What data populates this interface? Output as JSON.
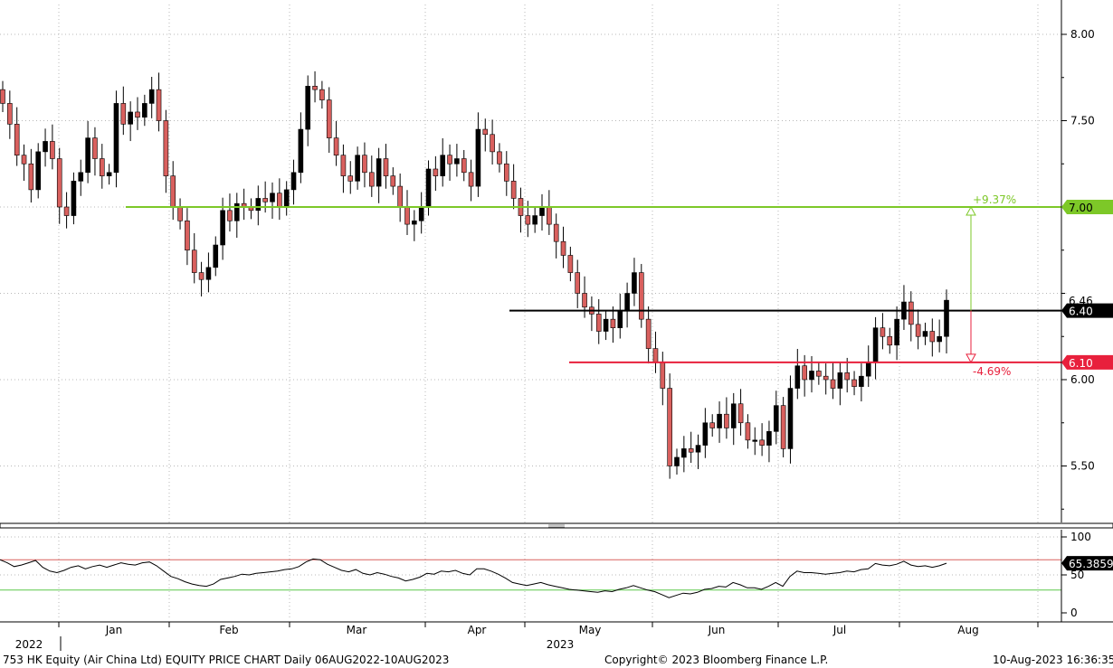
{
  "chart_data": [
    {
      "type": "candlestick",
      "ticker": "753 HK Equity",
      "y_ticks": [
        "8.00",
        "7.50",
        "6.00",
        "5.50"
      ],
      "ylim": [
        5.17,
        8.18
      ],
      "x_month_labels": [
        "Jan",
        "Feb",
        "Mar",
        "Apr",
        "May",
        "Jun",
        "Jul",
        "Aug"
      ],
      "x_year_labels": [
        "2022",
        "2023"
      ],
      "grid": true,
      "colors": {
        "up": "#000000",
        "down": "#d9605e",
        "resistance": "#7dc828",
        "support": "#e8203c",
        "current": "#000000"
      },
      "levels": [
        {
          "name": "resistance",
          "value": 7.0,
          "label": "7.00",
          "pct_label": "+9.37%"
        },
        {
          "name": "current",
          "value": 6.4,
          "label": "6.40"
        },
        {
          "name": "support",
          "value": 6.1,
          "label": "6.10",
          "pct_label": "-4.69%"
        }
      ],
      "partial_tag": "6.46",
      "closes": [
        7.6,
        7.48,
        7.3,
        7.25,
        7.1,
        7.32,
        7.38,
        7.28,
        7.0,
        6.95,
        7.15,
        7.2,
        7.4,
        7.28,
        7.18,
        7.2,
        7.6,
        7.48,
        7.55,
        7.52,
        7.6,
        7.68,
        7.5,
        7.18,
        7.0,
        6.92,
        6.75,
        6.62,
        6.58,
        6.65,
        6.78,
        6.98,
        6.92,
        7.02,
        7.0,
        6.98,
        7.05,
        7.03,
        7.08,
        7.0,
        7.1,
        7.2,
        7.45,
        7.7,
        7.68,
        7.62,
        7.4,
        7.3,
        7.18,
        7.15,
        7.3,
        7.2,
        7.12,
        7.28,
        7.18,
        7.12,
        7.0,
        6.9,
        6.92,
        7.0,
        7.22,
        7.18,
        7.3,
        7.25,
        7.28,
        7.2,
        7.12,
        7.45,
        7.42,
        7.32,
        7.25,
        7.15,
        7.05,
        6.95,
        6.9,
        6.95,
        7.0,
        6.9,
        6.8,
        6.72,
        6.62,
        6.5,
        6.42,
        6.38,
        6.28,
        6.35,
        6.3,
        6.4,
        6.5,
        6.62,
        6.35,
        6.18,
        6.1,
        5.95,
        5.5,
        5.55,
        5.6,
        5.58,
        5.62,
        5.75,
        5.72,
        5.8,
        5.72,
        5.86,
        5.75,
        5.65,
        5.65,
        5.62,
        5.7,
        5.85,
        5.6,
        5.95,
        6.08,
        6.0,
        6.05,
        6.02,
        6.0,
        5.95,
        6.04,
        6.0,
        5.96,
        6.02,
        6.1,
        6.3,
        6.25,
        6.2,
        6.35,
        6.45,
        6.32,
        6.25,
        6.28,
        6.22,
        6.25,
        6.46
      ]
    },
    {
      "type": "line",
      "indicator": "RSI",
      "y_ticks": [
        "100",
        "50",
        "0"
      ],
      "ylim": [
        0,
        100
      ],
      "bands": [
        70,
        30
      ],
      "last_value": 65.3859,
      "last_label": "65.3859",
      "values": [
        70,
        66,
        61,
        63,
        66,
        69,
        60,
        55,
        53,
        56,
        60,
        62,
        58,
        61,
        63,
        60,
        63,
        66,
        64,
        63,
        66,
        67,
        62,
        55,
        48,
        45,
        41,
        38,
        36,
        35,
        38,
        44,
        46,
        48,
        51,
        50,
        52,
        53,
        54,
        55,
        57,
        58,
        61,
        67,
        71,
        70,
        64,
        60,
        56,
        54,
        57,
        52,
        50,
        53,
        51,
        48,
        46,
        42,
        44,
        47,
        52,
        51,
        55,
        54,
        56,
        52,
        50,
        58,
        58,
        55,
        51,
        46,
        40,
        38,
        36,
        38,
        40,
        37,
        35,
        33,
        31,
        30,
        29,
        28,
        27,
        29,
        28,
        31,
        33,
        36,
        33,
        30,
        28,
        24,
        20,
        23,
        26,
        25,
        27,
        31,
        32,
        35,
        34,
        40,
        37,
        33,
        33,
        31,
        35,
        40,
        35,
        48,
        55,
        53,
        53,
        52,
        51,
        52,
        53,
        55,
        54,
        57,
        58,
        65,
        63,
        62,
        64,
        68,
        63,
        61,
        62,
        60,
        62,
        65.3859
      ]
    }
  ],
  "footer": {
    "title": "753 HK Equity (Air China Ltd) EQUITY PRICE CHART  Daily 06AUG2022-10AUG2023",
    "copyright": "Copyright© 2023 Bloomberg Finance L.P.",
    "timestamp": "10-Aug-2023 16:36:35"
  }
}
